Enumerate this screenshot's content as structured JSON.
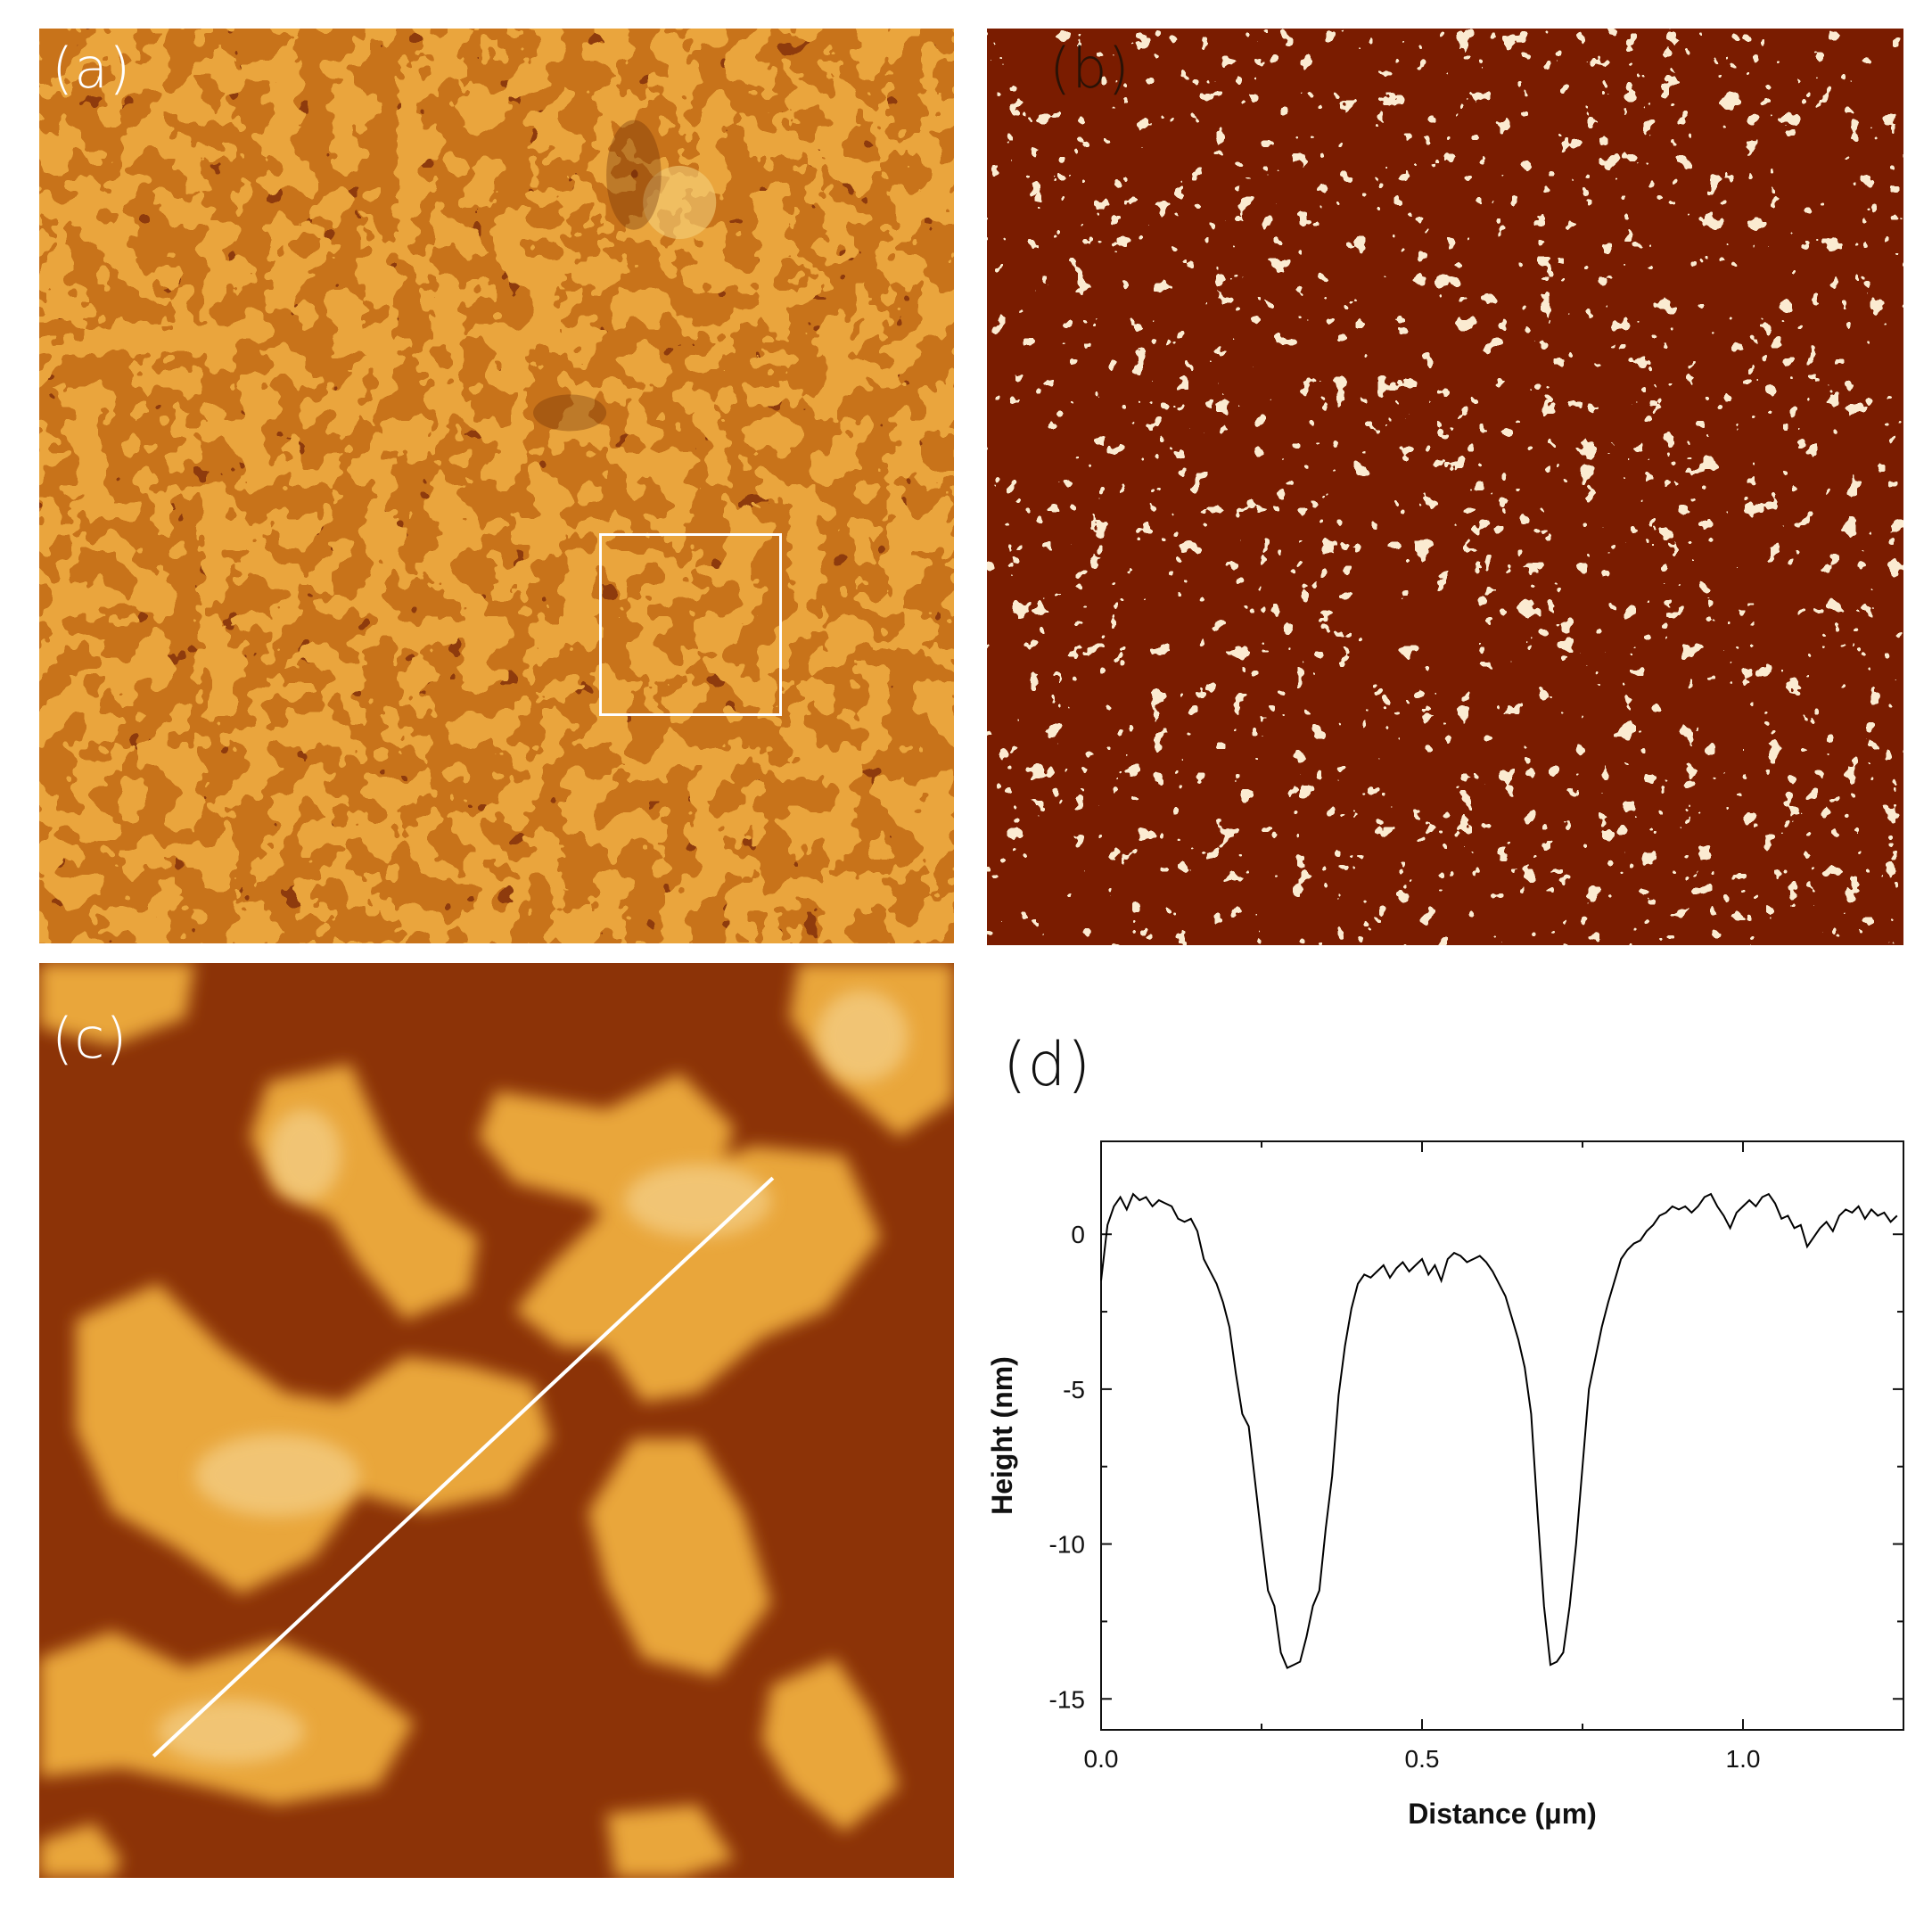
{
  "panels": {
    "a": {
      "label": "(a)",
      "background": "#c8731a",
      "island_color": "#e9a63a",
      "pit_color": "#8a3608"
    },
    "b": {
      "label": "(b)",
      "background": "#fbebd1",
      "network_color": "#7a1e04"
    },
    "c": {
      "label": "(c)",
      "background": "#8c3307",
      "island_color": "#e9a63a",
      "highlight_color": "#f7d99a"
    },
    "d": {
      "label": "(d)"
    }
  },
  "chart_data": {
    "type": "line",
    "title": "",
    "xlabel": "Distance (μm)",
    "ylabel": "Height (nm)",
    "xlim": [
      0.0,
      1.25
    ],
    "ylim": [
      -16,
      3
    ],
    "xticks": [
      "0.0",
      "0.5",
      "1.0"
    ],
    "xtick_values": [
      0.0,
      0.5,
      1.0
    ],
    "yticks": [
      "0",
      "-5",
      "-10",
      "-15"
    ],
    "ytick_values": [
      0,
      -5,
      -10,
      -15
    ],
    "grid": false,
    "series": [
      {
        "name": "",
        "color": "#000000",
        "x": [
          0.0,
          0.01,
          0.02,
          0.03,
          0.04,
          0.05,
          0.06,
          0.07,
          0.08,
          0.09,
          0.1,
          0.11,
          0.12,
          0.13,
          0.14,
          0.15,
          0.16,
          0.17,
          0.18,
          0.19,
          0.2,
          0.21,
          0.22,
          0.23,
          0.24,
          0.25,
          0.26,
          0.27,
          0.28,
          0.29,
          0.3,
          0.31,
          0.32,
          0.33,
          0.34,
          0.35,
          0.36,
          0.37,
          0.38,
          0.39,
          0.4,
          0.41,
          0.42,
          0.43,
          0.44,
          0.45,
          0.46,
          0.47,
          0.48,
          0.49,
          0.5,
          0.51,
          0.52,
          0.53,
          0.54,
          0.55,
          0.56,
          0.57,
          0.58,
          0.59,
          0.6,
          0.61,
          0.62,
          0.63,
          0.64,
          0.65,
          0.66,
          0.67,
          0.68,
          0.69,
          0.7,
          0.71,
          0.72,
          0.73,
          0.74,
          0.75,
          0.76,
          0.77,
          0.78,
          0.79,
          0.8,
          0.81,
          0.82,
          0.83,
          0.84,
          0.85,
          0.86,
          0.87,
          0.88,
          0.89,
          0.9,
          0.91,
          0.92,
          0.93,
          0.94,
          0.95,
          0.96,
          0.97,
          0.98,
          0.99,
          1.0,
          1.01,
          1.02,
          1.03,
          1.04,
          1.05,
          1.06,
          1.07,
          1.08,
          1.09,
          1.1,
          1.11,
          1.12,
          1.13,
          1.14,
          1.15,
          1.16,
          1.17,
          1.18,
          1.19,
          1.2,
          1.21,
          1.22,
          1.23,
          1.24
        ],
        "values": [
          -1.5,
          0.3,
          0.9,
          1.2,
          0.8,
          1.3,
          1.1,
          1.2,
          0.9,
          1.1,
          1.0,
          0.9,
          0.5,
          0.4,
          0.5,
          0.1,
          -0.8,
          -1.2,
          -1.6,
          -2.2,
          -3.0,
          -4.5,
          -5.8,
          -6.2,
          -8.0,
          -9.8,
          -11.5,
          -12.0,
          -13.5,
          -14.0,
          -13.9,
          -13.8,
          -13.0,
          -12.0,
          -11.5,
          -9.5,
          -7.8,
          -5.2,
          -3.6,
          -2.4,
          -1.6,
          -1.3,
          -1.4,
          -1.2,
          -1.0,
          -1.4,
          -1.1,
          -0.9,
          -1.2,
          -1.0,
          -0.8,
          -1.3,
          -1.0,
          -1.5,
          -0.8,
          -0.6,
          -0.7,
          -0.9,
          -0.8,
          -0.7,
          -0.9,
          -1.2,
          -1.6,
          -2.0,
          -2.7,
          -3.4,
          -4.3,
          -5.8,
          -9.0,
          -12.0,
          -13.9,
          -13.8,
          -13.5,
          -12.0,
          -10.0,
          -7.5,
          -5.0,
          -4.0,
          -3.0,
          -2.2,
          -1.5,
          -0.8,
          -0.5,
          -0.3,
          -0.2,
          0.1,
          0.3,
          0.6,
          0.7,
          0.9,
          0.8,
          0.9,
          0.7,
          0.9,
          1.2,
          1.3,
          0.9,
          0.6,
          0.2,
          0.7,
          0.9,
          1.1,
          0.9,
          1.2,
          1.3,
          1.0,
          0.5,
          0.6,
          0.2,
          0.3,
          -0.4,
          -0.1,
          0.2,
          0.4,
          0.1,
          0.6,
          0.8,
          0.7,
          0.9,
          0.5,
          0.8,
          0.6,
          0.7,
          0.4,
          0.6
        ]
      }
    ]
  }
}
